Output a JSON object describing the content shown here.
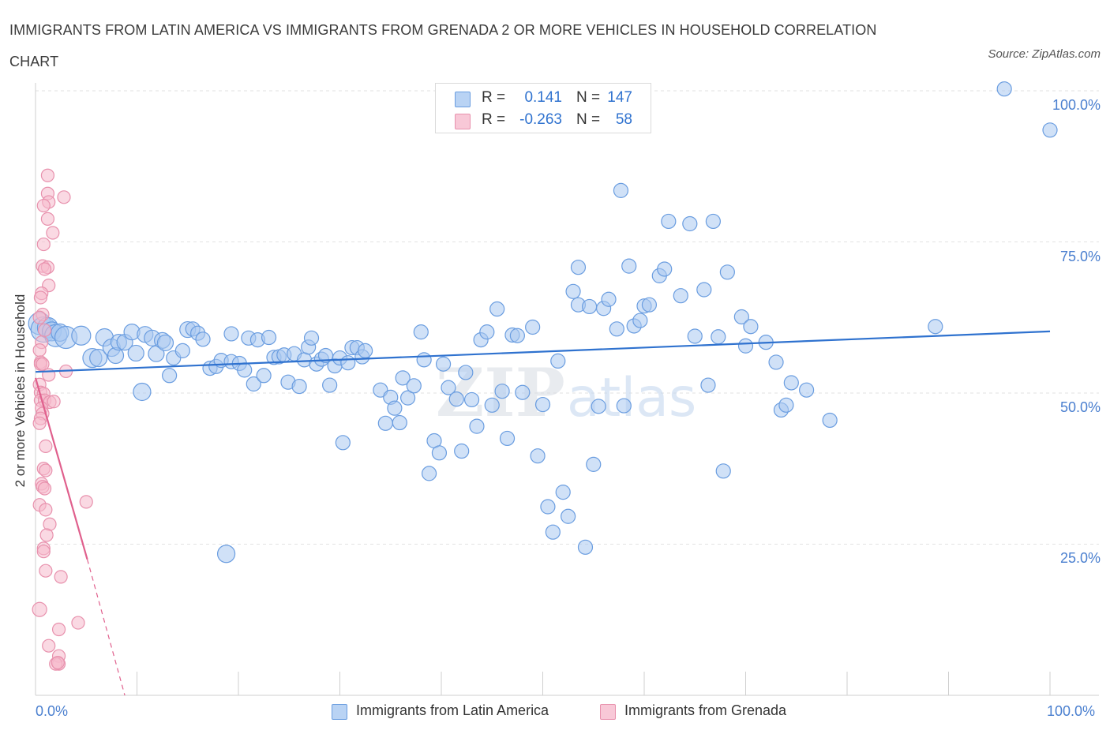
{
  "header": {
    "title": "IMMIGRANTS FROM LATIN AMERICA VS IMMIGRANTS FROM GRENADA 2 OR MORE VEHICLES IN HOUSEHOLD CORRELATION CHART",
    "source": "Source: ZipAtlas.com"
  },
  "watermark": {
    "zip": "ZIP",
    "atlas": "atlas"
  },
  "stats_legend": {
    "r_label": "R =",
    "n_label": "N =",
    "rows": [
      {
        "r_value": "0.141",
        "n_value": "147"
      },
      {
        "r_value": "-0.263",
        "n_value": "58"
      }
    ]
  },
  "colors": {
    "blue_fill": "#a9c8f0",
    "blue_stroke": "#6a9de0",
    "blue_line": "#2f72cf",
    "pink_fill": "#f5b9cc",
    "pink_stroke": "#e891ad",
    "pink_line": "#e0608d",
    "tick_text": "#4a7fcf",
    "grid": "#e2e2e2"
  },
  "chart_data": {
    "type": "scatter",
    "title": "IMMIGRANTS FROM LATIN AMERICA VS IMMIGRANTS FROM GRENADA 2 OR MORE VEHICLES IN HOUSEHOLD CORRELATION CHART",
    "xlabel": "",
    "ylabel": "2 or more Vehicles in Household",
    "xlim": [
      0,
      100
    ],
    "ylim": [
      0,
      100
    ],
    "x_ticks": [
      "0.0%",
      "100.0%"
    ],
    "y_ticks": [
      {
        "value": 100,
        "label": "100.0%"
      },
      {
        "value": 75,
        "label": "75.0%"
      },
      {
        "value": 50,
        "label": "50.0%"
      },
      {
        "value": 25,
        "label": "25.0%"
      }
    ],
    "grid": true,
    "legend_position": "bottom",
    "series": [
      {
        "name": "Immigrants from Latin America",
        "R": 0.141,
        "N": 147,
        "trend": {
          "x0": 0,
          "y0": 53.5,
          "x1": 100,
          "y1": 60.2
        },
        "points": [
          [
            0.4,
            61.5,
            14
          ],
          [
            0.8,
            60.5,
            16
          ],
          [
            1.2,
            60.8,
            13
          ],
          [
            1.6,
            60.2,
            12
          ],
          [
            2.0,
            59.5,
            14
          ],
          [
            2.4,
            60.0,
            11
          ],
          [
            3.0,
            59.2,
            14
          ],
          [
            4.5,
            59.5,
            12
          ],
          [
            5.6,
            55.8,
            12
          ],
          [
            6.2,
            55.8,
            11
          ],
          [
            6.8,
            59.2,
            11
          ],
          [
            7.5,
            57.5,
            11
          ],
          [
            7.9,
            56.2,
            10
          ],
          [
            8.2,
            58.4,
            10
          ],
          [
            8.8,
            58.4,
            10
          ],
          [
            9.5,
            60.1,
            10
          ],
          [
            9.9,
            56.6,
            10
          ],
          [
            10.5,
            50.2,
            11
          ],
          [
            10.8,
            59.7,
            10
          ],
          [
            11.5,
            59.1,
            10
          ],
          [
            11.9,
            56.5,
            10
          ],
          [
            12.5,
            58.7,
            10
          ],
          [
            12.8,
            58.3,
            10
          ],
          [
            13.2,
            52.9,
            9
          ],
          [
            13.6,
            55.8,
            9
          ],
          [
            14.5,
            57.0,
            9
          ],
          [
            15.0,
            60.5,
            10
          ],
          [
            15.5,
            60.6,
            9
          ],
          [
            16.0,
            59.9,
            9
          ],
          [
            16.5,
            58.9,
            9
          ],
          [
            17.2,
            54.1,
            9
          ],
          [
            17.8,
            54.4,
            9
          ],
          [
            18.3,
            55.4,
            9
          ],
          [
            18.8,
            23.4,
            11
          ],
          [
            19.3,
            55.2,
            9
          ],
          [
            19.3,
            59.8,
            9
          ],
          [
            20.1,
            54.9,
            9
          ],
          [
            20.6,
            53.8,
            9
          ],
          [
            21.0,
            59.1,
            9
          ],
          [
            21.5,
            51.5,
            9
          ],
          [
            21.9,
            58.8,
            9
          ],
          [
            22.5,
            52.9,
            9
          ],
          [
            23.0,
            59.2,
            9
          ],
          [
            23.5,
            55.9,
            9
          ],
          [
            24.0,
            56.0,
            9
          ],
          [
            24.5,
            56.3,
            9
          ],
          [
            24.9,
            51.8,
            9
          ],
          [
            25.5,
            56.5,
            9
          ],
          [
            26.0,
            51.1,
            9
          ],
          [
            26.5,
            55.5,
            9
          ],
          [
            26.9,
            57.6,
            9
          ],
          [
            27.2,
            59.1,
            9
          ],
          [
            27.7,
            54.8,
            9
          ],
          [
            28.2,
            55.6,
            9
          ],
          [
            28.6,
            56.2,
            9
          ],
          [
            29.0,
            51.3,
            9
          ],
          [
            29.5,
            54.5,
            9
          ],
          [
            30.0,
            55.8,
            9
          ],
          [
            30.3,
            41.8,
            9
          ],
          [
            30.8,
            55.0,
            9
          ],
          [
            31.2,
            57.5,
            9
          ],
          [
            31.7,
            57.5,
            9
          ],
          [
            32.2,
            56.0,
            9
          ],
          [
            32.5,
            57.0,
            9
          ],
          [
            34.0,
            50.5,
            9
          ],
          [
            34.5,
            45.0,
            9
          ],
          [
            35.0,
            49.3,
            9
          ],
          [
            35.4,
            47.5,
            9
          ],
          [
            35.9,
            45.1,
            9
          ],
          [
            36.2,
            52.5,
            9
          ],
          [
            36.7,
            49.2,
            9
          ],
          [
            37.3,
            51.2,
            9
          ],
          [
            38.0,
            60.1,
            9
          ],
          [
            38.3,
            55.5,
            9
          ],
          [
            38.8,
            36.7,
            9
          ],
          [
            39.3,
            42.1,
            9
          ],
          [
            39.8,
            40.1,
            9
          ],
          [
            40.2,
            54.8,
            9
          ],
          [
            40.7,
            50.9,
            9
          ],
          [
            41.5,
            49.0,
            9
          ],
          [
            42.0,
            40.4,
            9
          ],
          [
            42.4,
            53.4,
            9
          ],
          [
            43.0,
            48.9,
            9
          ],
          [
            43.5,
            44.5,
            9
          ],
          [
            43.9,
            58.8,
            9
          ],
          [
            44.5,
            60.1,
            9
          ],
          [
            45.0,
            48.0,
            9
          ],
          [
            45.5,
            63.9,
            9
          ],
          [
            46.0,
            50.3,
            9
          ],
          [
            46.5,
            42.5,
            9
          ],
          [
            47.0,
            59.6,
            9
          ],
          [
            47.5,
            59.5,
            9
          ],
          [
            48.0,
            50.1,
            9
          ],
          [
            49.0,
            60.9,
            9
          ],
          [
            49.5,
            39.6,
            9
          ],
          [
            50.0,
            48.1,
            9
          ],
          [
            50.5,
            31.2,
            9
          ],
          [
            51.0,
            27.0,
            9
          ],
          [
            51.5,
            55.3,
            9
          ],
          [
            52.0,
            33.6,
            9
          ],
          [
            52.5,
            29.6,
            9
          ],
          [
            53.0,
            66.8,
            9
          ],
          [
            53.5,
            70.8,
            9
          ],
          [
            53.5,
            64.6,
            9
          ],
          [
            54.2,
            24.5,
            9
          ],
          [
            54.6,
            64.3,
            9
          ],
          [
            55.0,
            38.2,
            9
          ],
          [
            55.5,
            47.8,
            9
          ],
          [
            56.0,
            64.0,
            9
          ],
          [
            56.5,
            65.5,
            9
          ],
          [
            57.3,
            60.6,
            9
          ],
          [
            57.7,
            83.5,
            9
          ],
          [
            58.0,
            47.9,
            9
          ],
          [
            58.5,
            71.0,
            9
          ],
          [
            59.0,
            61.1,
            9
          ],
          [
            59.6,
            62.0,
            9
          ],
          [
            60.0,
            64.4,
            9
          ],
          [
            60.5,
            64.6,
            9
          ],
          [
            61.5,
            69.4,
            9
          ],
          [
            62.0,
            70.5,
            9
          ],
          [
            62.4,
            78.4,
            9
          ],
          [
            63.6,
            66.1,
            9
          ],
          [
            64.5,
            78.0,
            9
          ],
          [
            65.0,
            59.4,
            9
          ],
          [
            65.9,
            67.1,
            9
          ],
          [
            66.3,
            51.3,
            9
          ],
          [
            66.8,
            78.4,
            9
          ],
          [
            67.3,
            59.3,
            9
          ],
          [
            67.8,
            37.1,
            9
          ],
          [
            68.2,
            70.0,
            9
          ],
          [
            69.6,
            62.6,
            9
          ],
          [
            70.0,
            57.8,
            9
          ],
          [
            70.5,
            61.0,
            9
          ],
          [
            72.0,
            58.4,
            9
          ],
          [
            73.0,
            55.1,
            9
          ],
          [
            73.5,
            47.2,
            9
          ],
          [
            74.0,
            48.0,
            9
          ],
          [
            74.5,
            51.7,
            9
          ],
          [
            76.0,
            50.5,
            9
          ],
          [
            78.3,
            45.5,
            9
          ],
          [
            88.7,
            61.0,
            9
          ],
          [
            95.5,
            100.3,
            9
          ],
          [
            100.0,
            93.5,
            9
          ]
        ]
      },
      {
        "name": "Immigrants from Grenada",
        "R": -0.263,
        "N": 58,
        "trend": {
          "x0": 0,
          "y0": 52.5,
          "x1": 5.1,
          "y1": 22.5,
          "dash_x1": 8.8,
          "dash_y1": 0
        },
        "points": [
          [
            1.2,
            86.0,
            8
          ],
          [
            1.2,
            83.0,
            8
          ],
          [
            1.3,
            81.6,
            8
          ],
          [
            0.8,
            81.0,
            8
          ],
          [
            2.8,
            82.4,
            8
          ],
          [
            1.2,
            78.8,
            8
          ],
          [
            1.7,
            76.5,
            8
          ],
          [
            0.8,
            74.6,
            8
          ],
          [
            0.7,
            71.0,
            8
          ],
          [
            1.2,
            70.8,
            8
          ],
          [
            0.9,
            70.5,
            8
          ],
          [
            1.3,
            67.8,
            8
          ],
          [
            0.6,
            66.5,
            8
          ],
          [
            0.5,
            65.8,
            8
          ],
          [
            0.7,
            63.0,
            8
          ],
          [
            0.4,
            62.5,
            8
          ],
          [
            0.9,
            60.4,
            8
          ],
          [
            0.6,
            58.4,
            8
          ],
          [
            0.4,
            57.1,
            8
          ],
          [
            0.5,
            55.1,
            8
          ],
          [
            0.5,
            54.8,
            8
          ],
          [
            0.7,
            54.8,
            8
          ],
          [
            3.0,
            53.6,
            8
          ],
          [
            1.3,
            53.0,
            8
          ],
          [
            0.4,
            51.4,
            8
          ],
          [
            0.5,
            50.1,
            8
          ],
          [
            0.8,
            49.9,
            8
          ],
          [
            0.5,
            48.8,
            8
          ],
          [
            0.9,
            48.8,
            8
          ],
          [
            1.4,
            48.5,
            8
          ],
          [
            1.8,
            48.6,
            8
          ],
          [
            0.6,
            47.5,
            8
          ],
          [
            0.7,
            46.6,
            8
          ],
          [
            0.5,
            45.8,
            8
          ],
          [
            0.4,
            45.0,
            8
          ],
          [
            1.0,
            41.2,
            8
          ],
          [
            0.8,
            37.5,
            8
          ],
          [
            1.0,
            37.2,
            8
          ],
          [
            0.6,
            35.0,
            8
          ],
          [
            0.7,
            34.5,
            8
          ],
          [
            0.9,
            34.2,
            8
          ],
          [
            5.0,
            32.0,
            8
          ],
          [
            0.4,
            31.5,
            8
          ],
          [
            1.0,
            30.7,
            8
          ],
          [
            1.4,
            28.3,
            8
          ],
          [
            1.1,
            26.5,
            8
          ],
          [
            0.8,
            24.3,
            8
          ],
          [
            0.8,
            23.8,
            8
          ],
          [
            1.0,
            20.6,
            8
          ],
          [
            2.5,
            19.6,
            8
          ],
          [
            0.4,
            14.2,
            9
          ],
          [
            4.2,
            12.0,
            8
          ],
          [
            2.3,
            10.9,
            8
          ],
          [
            1.3,
            8.2,
            8
          ],
          [
            2.3,
            6.5,
            8
          ],
          [
            2.3,
            5.2,
            8
          ],
          [
            2.0,
            5.2,
            8
          ],
          [
            2.2,
            5.4,
            8
          ]
        ]
      }
    ]
  },
  "bottom_legend": {
    "items": [
      {
        "label": "Immigrants from Latin America"
      },
      {
        "label": "Immigrants from Grenada"
      }
    ]
  }
}
